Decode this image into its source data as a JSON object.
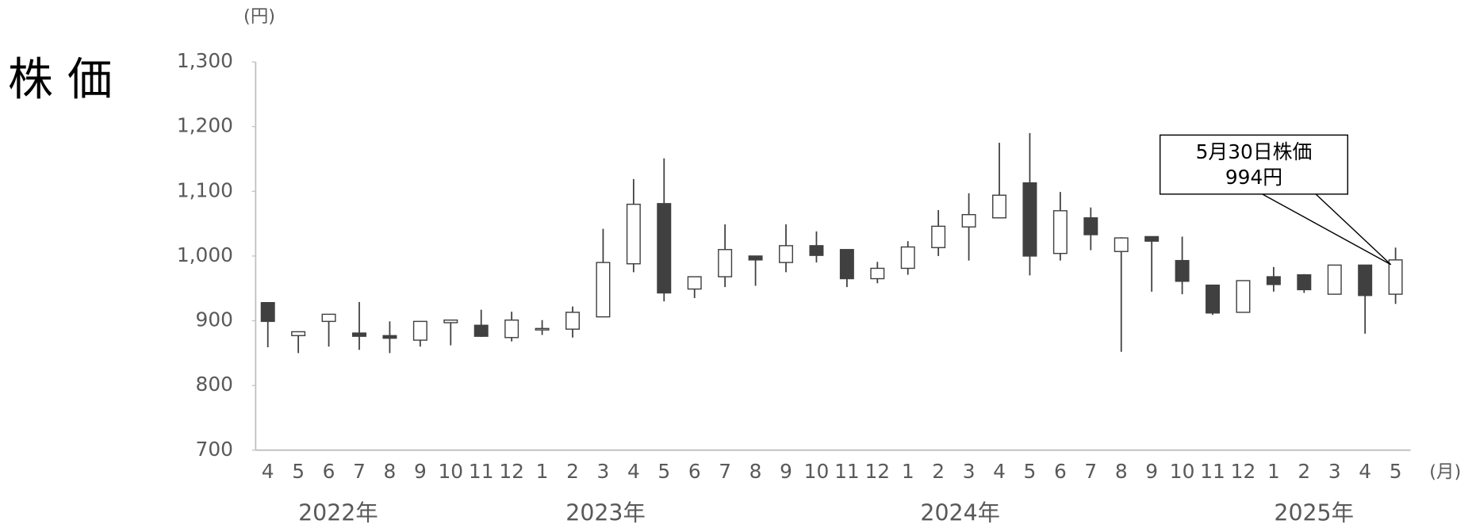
{
  "chart_data": {
    "type": "candlestick",
    "title": "株 価",
    "y_unit": "(円)",
    "x_unit": "(月)",
    "year_labels": [
      "2022年",
      "2023年",
      "2024年",
      "2025年"
    ],
    "annotation": [
      "5月30日株価",
      "994円"
    ],
    "categories": [
      "4",
      "5",
      "6",
      "7",
      "8",
      "9",
      "10",
      "11",
      "12",
      "1",
      "2",
      "3",
      "4",
      "5",
      "6",
      "7",
      "8",
      "9",
      "10",
      "11",
      "12",
      "1",
      "2",
      "3",
      "4",
      "5",
      "6",
      "7",
      "8",
      "9",
      "10",
      "11",
      "12",
      "1",
      "2",
      "3",
      "4",
      "5"
    ],
    "open": [
      928,
      877,
      899,
      881,
      877,
      870,
      897,
      893,
      874,
      887,
      887,
      906,
      988,
      1081,
      949,
      968,
      1000,
      990,
      1016,
      1010,
      965,
      981,
      1013,
      1045,
      1059,
      1113,
      1004,
      1059,
      1007,
      1030,
      993,
      955,
      913,
      968,
      971,
      941,
      986,
      941
    ],
    "high": [
      928,
      883,
      910,
      929,
      899,
      899,
      901,
      917,
      914,
      901,
      922,
      1042,
      1119,
      1151,
      968,
      1049,
      1000,
      1049,
      1038,
      1010,
      991,
      1023,
      1071,
      1097,
      1175,
      1190,
      1099,
      1075,
      1029,
      1030,
      1030,
      955,
      962,
      983,
      972,
      986,
      986,
      1013
    ],
    "low": [
      859,
      850,
      860,
      855,
      850,
      860,
      862,
      875,
      868,
      878,
      874,
      906,
      975,
      930,
      935,
      952,
      954,
      975,
      990,
      952,
      958,
      971,
      1000,
      993,
      1059,
      970,
      993,
      1009,
      852,
      945,
      941,
      909,
      913,
      945,
      943,
      941,
      880,
      926
    ],
    "close": [
      899,
      883,
      910,
      876,
      873,
      899,
      901,
      876,
      901,
      888,
      913,
      990,
      1080,
      943,
      968,
      1010,
      994,
      1016,
      1001,
      965,
      981,
      1014,
      1046,
      1064,
      1094,
      1000,
      1070,
      1033,
      1028,
      1023,
      961,
      912,
      962,
      956,
      948,
      986,
      939,
      994
    ],
    "up_color": "#ffffff",
    "down_color": "#404040",
    "edge_color": "#404040",
    "ylim": [
      700,
      1300
    ],
    "yticks": [
      700,
      800,
      900,
      {
        "value": 1000,
        "label": "1,000"
      },
      {
        "value": 1100,
        "label": "1,100"
      },
      {
        "value": 1200,
        "label": "1,200"
      },
      {
        "value": 1300,
        "label": "1,300"
      }
    ]
  }
}
